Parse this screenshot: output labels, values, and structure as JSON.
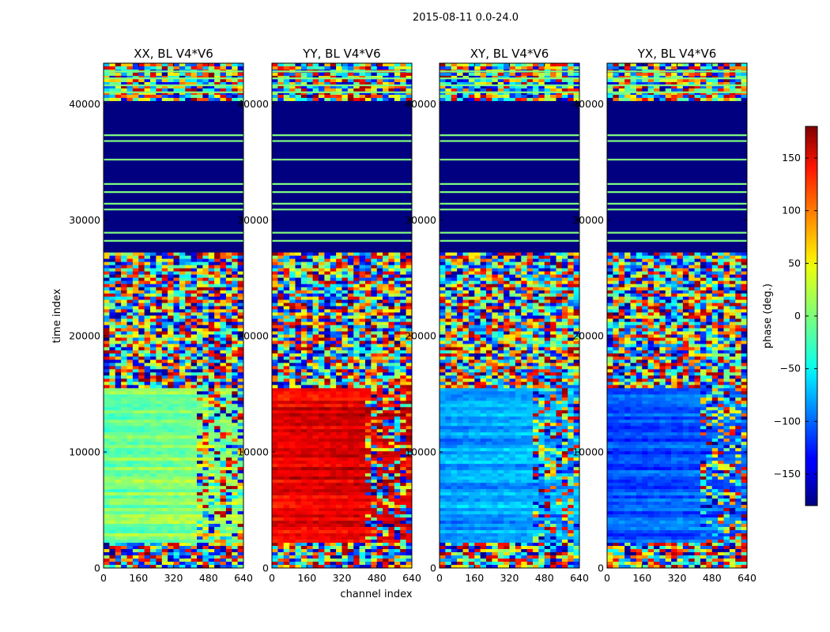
{
  "figure": {
    "suptitle": "2015-08-11 0.0-24.0",
    "xlabel": "channel index",
    "ylabel": "time index",
    "colorbar_label": "phase (deg.)"
  },
  "chart_data": {
    "type": "heatmap",
    "colormap": "jet",
    "panels": [
      {
        "title": "XX, BL V4*V6"
      },
      {
        "title": "YY, BL V4*V6"
      },
      {
        "title": "XY, BL V4*V6"
      },
      {
        "title": "YX, BL V4*V6"
      }
    ],
    "x_range": [
      0,
      640
    ],
    "y_range": [
      0,
      43500
    ],
    "x_ticks": [
      0,
      160,
      320,
      480,
      640
    ],
    "y_ticks": [
      0,
      10000,
      20000,
      30000,
      40000
    ],
    "color_range": [
      -180,
      180
    ],
    "colorbar_ticks": [
      -150,
      -100,
      -50,
      0,
      50,
      100,
      150
    ],
    "noise_rows": [
      [
        0,
        2200
      ],
      [
        15500,
        27300
      ],
      [
        40200,
        43500
      ]
    ],
    "smooth_base_phase": [
      -5,
      140,
      -80,
      -110
    ],
    "blank_row_phase": -180,
    "blank_bands": [
      [
        27300,
        40200
      ]
    ],
    "flag_lines": [
      28200,
      28900,
      30900,
      31400,
      32400,
      33100,
      35200,
      36800,
      37300,
      41000,
      41600,
      42200,
      42800
    ]
  },
  "colors": {
    "frame": "#000000",
    "background": "#ffffff"
  }
}
